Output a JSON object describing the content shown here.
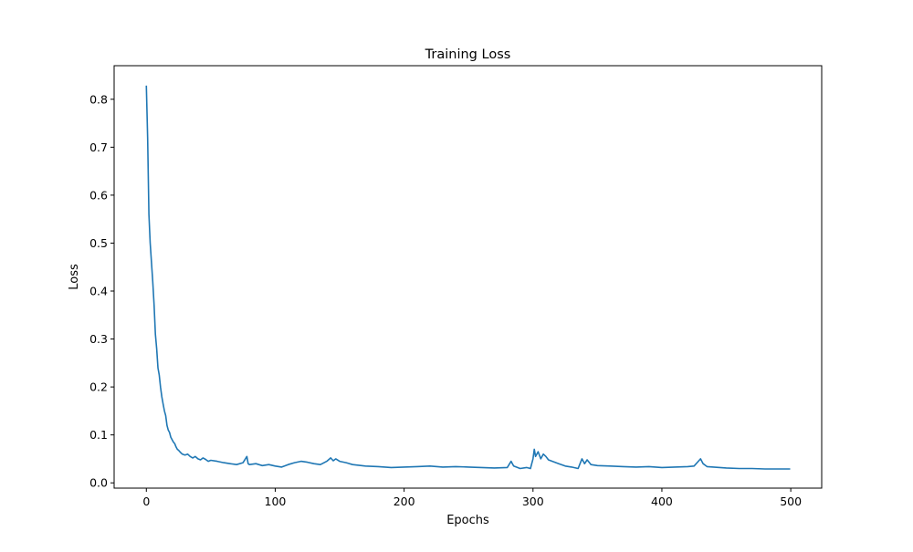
{
  "chart_data": {
    "type": "line",
    "title": "Training Loss",
    "xlabel": "Epochs",
    "ylabel": "Loss",
    "xlim": [
      -25,
      524
    ],
    "ylim": [
      -0.011,
      0.87
    ],
    "xticks": [
      0,
      100,
      200,
      300,
      400,
      500
    ],
    "yticks": [
      0.0,
      0.1,
      0.2,
      0.3,
      0.4,
      0.5,
      0.6,
      0.7,
      0.8
    ],
    "xtick_labels": [
      "0",
      "100",
      "200",
      "300",
      "400",
      "500"
    ],
    "ytick_labels": [
      "0.0",
      "0.1",
      "0.2",
      "0.3",
      "0.4",
      "0.5",
      "0.6",
      "0.7",
      "0.8"
    ],
    "grid": false,
    "legend": "none",
    "series": [
      {
        "color": "#1f77b4",
        "x": [
          0,
          1,
          2,
          3,
          4,
          5,
          6,
          7,
          8,
          9,
          10,
          11,
          12,
          13,
          14,
          15,
          16,
          17,
          18,
          19,
          20,
          21,
          22,
          23,
          24,
          25,
          26,
          27,
          28,
          30,
          32,
          34,
          36,
          38,
          40,
          42,
          44,
          46,
          48,
          50,
          55,
          60,
          65,
          70,
          75,
          78,
          79,
          80,
          85,
          90,
          95,
          100,
          105,
          110,
          115,
          120,
          125,
          130,
          135,
          140,
          143,
          145,
          147,
          150,
          155,
          160,
          170,
          180,
          190,
          200,
          210,
          220,
          230,
          240,
          250,
          260,
          270,
          280,
          283,
          285,
          290,
          295,
          298,
          300,
          301,
          302,
          304,
          306,
          308,
          310,
          312,
          315,
          320,
          325,
          330,
          335,
          338,
          340,
          342,
          345,
          350,
          360,
          370,
          380,
          390,
          400,
          410,
          420,
          425,
          430,
          432,
          435,
          440,
          450,
          460,
          470,
          480,
          490,
          499
        ],
        "y": [
          0.827,
          0.72,
          0.56,
          0.5,
          0.46,
          0.42,
          0.37,
          0.31,
          0.28,
          0.24,
          0.225,
          0.2,
          0.18,
          0.165,
          0.15,
          0.14,
          0.12,
          0.11,
          0.105,
          0.095,
          0.09,
          0.085,
          0.082,
          0.075,
          0.07,
          0.068,
          0.065,
          0.062,
          0.06,
          0.058,
          0.06,
          0.055,
          0.052,
          0.055,
          0.05,
          0.048,
          0.052,
          0.049,
          0.045,
          0.047,
          0.045,
          0.042,
          0.04,
          0.038,
          0.042,
          0.055,
          0.04,
          0.038,
          0.04,
          0.036,
          0.038,
          0.035,
          0.033,
          0.038,
          0.042,
          0.045,
          0.043,
          0.04,
          0.038,
          0.045,
          0.052,
          0.046,
          0.05,
          0.045,
          0.042,
          0.038,
          0.035,
          0.034,
          0.032,
          0.033,
          0.034,
          0.035,
          0.033,
          0.034,
          0.033,
          0.032,
          0.031,
          0.032,
          0.045,
          0.035,
          0.03,
          0.032,
          0.03,
          0.05,
          0.07,
          0.055,
          0.065,
          0.05,
          0.06,
          0.055,
          0.048,
          0.045,
          0.04,
          0.035,
          0.033,
          0.03,
          0.05,
          0.04,
          0.048,
          0.038,
          0.036,
          0.035,
          0.034,
          0.033,
          0.034,
          0.032,
          0.033,
          0.034,
          0.035,
          0.05,
          0.04,
          0.034,
          0.033,
          0.031,
          0.03,
          0.03,
          0.029,
          0.029,
          0.029
        ]
      }
    ]
  }
}
